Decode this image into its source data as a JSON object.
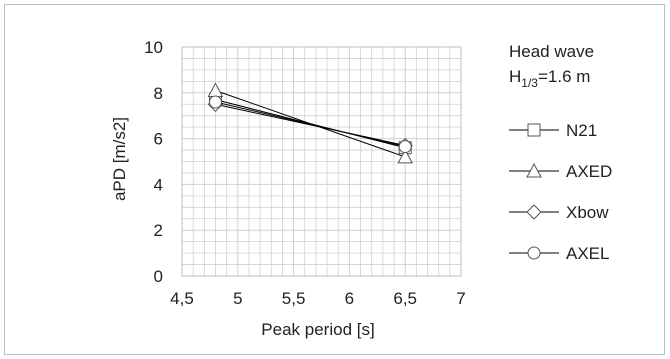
{
  "chart_data": {
    "type": "line",
    "title": "",
    "xlabel": "Peak period [s]",
    "ylabel": "aPD [m/s2]",
    "xlim": [
      4.5,
      7
    ],
    "ylim": [
      0,
      10
    ],
    "x_ticks": [
      "4,5",
      "5",
      "5,5",
      "6",
      "6,5",
      "7"
    ],
    "y_ticks": [
      "0",
      "2",
      "4",
      "6",
      "8",
      "10"
    ],
    "grid": true,
    "legend_position": "right",
    "legend_title_line1": "Head wave",
    "legend_title_h": "H",
    "legend_title_sub": "1/3",
    "legend_title_rest": "=1.6 m",
    "series": [
      {
        "name": "N21",
        "marker": "square",
        "x": [
          4.8,
          6.5
        ],
        "y": [
          7.7,
          5.6
        ]
      },
      {
        "name": "AXED",
        "marker": "triangle",
        "x": [
          4.8,
          6.5
        ],
        "y": [
          8.1,
          5.2
        ]
      },
      {
        "name": "Xbow",
        "marker": "diamond",
        "x": [
          4.8,
          6.5
        ],
        "y": [
          7.5,
          5.7
        ]
      },
      {
        "name": "AXEL",
        "marker": "circle",
        "x": [
          4.8,
          6.5
        ],
        "y": [
          7.6,
          5.65
        ]
      }
    ],
    "colors": {
      "line": "#000000",
      "grid": "#d0d0d0",
      "marker": "#555555"
    }
  }
}
